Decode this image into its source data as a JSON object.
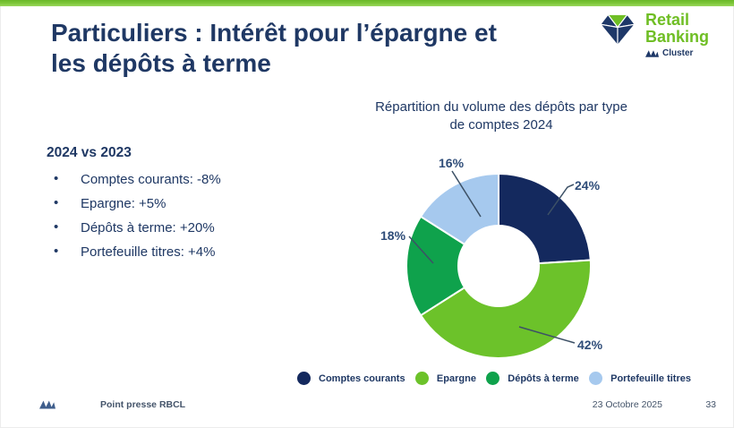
{
  "slide": {
    "title": "Particuliers : Intérêt pour l’épargne et les dépôts à terme",
    "title_lines": [
      "Particuliers : Intérêt pour l’épargne et",
      "les dépôts à terme"
    ]
  },
  "brand": {
    "name": "Retail Banking",
    "name_lines": [
      "Retail",
      "Banking"
    ],
    "cluster_label": "Cluster"
  },
  "left_panel": {
    "heading": "2024 vs 2023",
    "bullets": [
      "Comptes courants: -8%",
      "Epargne: +5%",
      "Dépôts à terme: +20%",
      "Portefeuille titres: +4%"
    ]
  },
  "chart_data": {
    "type": "pie",
    "subtype": "donut",
    "title": "Répartition du volume des dépôts par type de comptes 2024",
    "title_lines": [
      "Répartition du volume des dépôts par type",
      "de comptes 2024"
    ],
    "categories": [
      "Comptes courants",
      "Epargne",
      "Dépôts à terme",
      "Portefeuille titres"
    ],
    "values": [
      24,
      42,
      18,
      16
    ],
    "unit": "%",
    "start_angle_deg": 0,
    "direction": "clockwise",
    "legend_position": "bottom",
    "center": [
      159,
      129
    ],
    "outer_radius": 103,
    "inner_radius": 45,
    "slices": [
      {
        "name": "Comptes courants",
        "value": 24,
        "pct_label": "24%",
        "color": "#14295E",
        "label_pos": [
          244,
          44
        ],
        "leader": [
          [
            214,
            72
          ],
          [
            236,
            41
          ],
          [
            243,
            38
          ]
        ]
      },
      {
        "name": "Epargne",
        "value": 42,
        "pct_label": "42%",
        "color": "#6CC22A",
        "label_pos": [
          247,
          222
        ],
        "leader": [
          [
            182,
            197
          ],
          [
            244,
            215
          ]
        ]
      },
      {
        "name": "Dépôts à terme",
        "value": 18,
        "pct_label": "18%",
        "color": "#0FA24C",
        "label_pos": [
          27,
          100
        ],
        "leader": [
          [
            59,
            96
          ],
          [
            86,
            126
          ]
        ]
      },
      {
        "name": "Portefeuille titres",
        "value": 16,
        "pct_label": "16%",
        "color": "#A6C9EE",
        "label_pos": [
          92,
          19
        ],
        "leader": [
          [
            107,
            23
          ],
          [
            139,
            74
          ]
        ]
      }
    ]
  },
  "footer": {
    "doc_label": "Point presse RBCL",
    "date": "23 Octobre 2025",
    "page_number": "33"
  },
  "theme": {
    "navy_text": "#1F3864",
    "slice_navy": "#14295E",
    "light_green": "#6CC22A",
    "dark_green": "#0FA24C",
    "light_blue": "#A6C9EE",
    "top_bar_green": "#7FC83B",
    "brand_green": "#6FBE24",
    "leader": "#3D5166",
    "footer_text": "#44546A"
  },
  "icons": {
    "brand_gem": "gem-logo",
    "bank_mark": "bank-logo-mark"
  }
}
